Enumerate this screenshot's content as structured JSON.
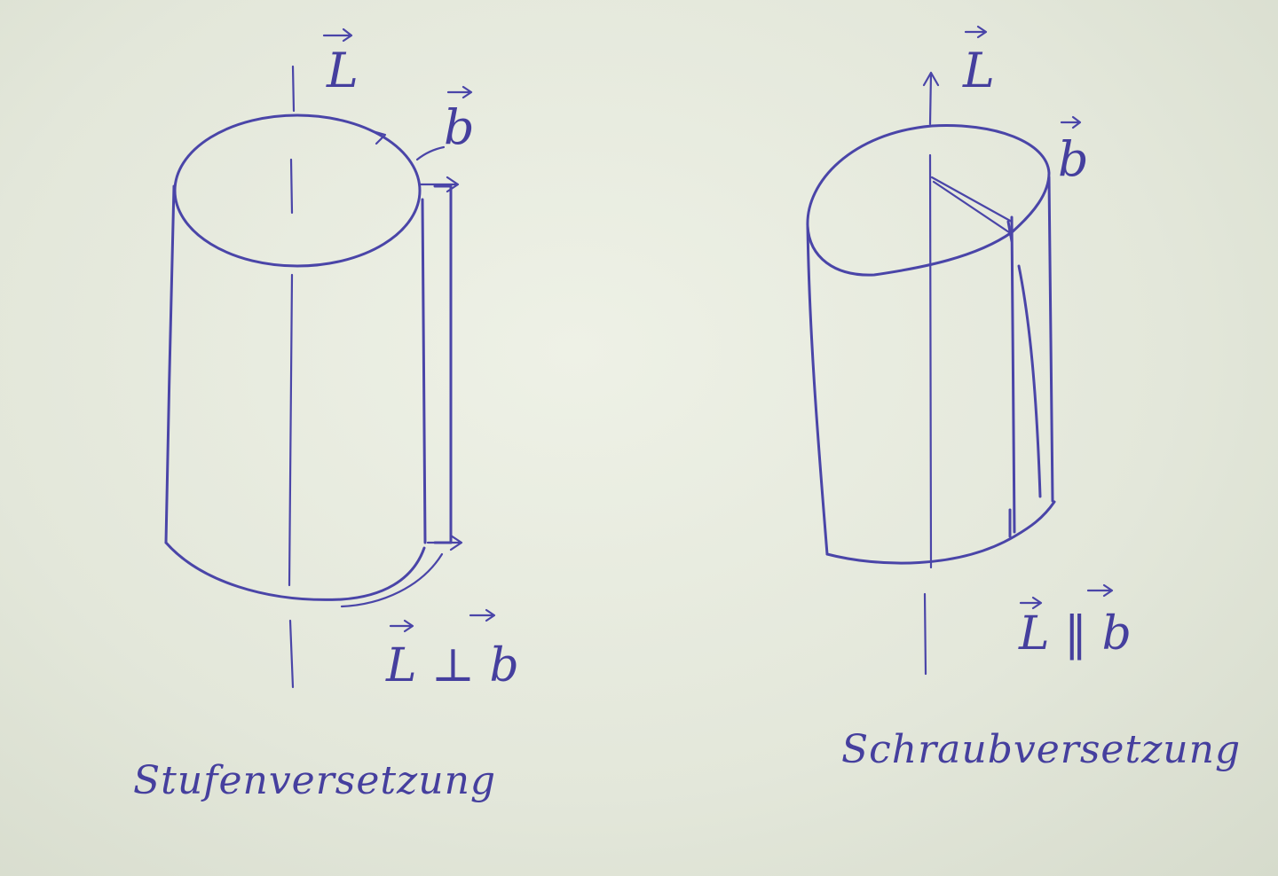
{
  "figure": {
    "left_diagram": {
      "axis_label": "L",
      "burgers_label": "b",
      "relation_text": "L ⊥ b",
      "caption": "Stufenversetzung"
    },
    "right_diagram": {
      "axis_label": "L",
      "burgers_label": "b",
      "relation_text": "L ‖ b",
      "caption": "Schraubversetzung"
    }
  },
  "colors": {
    "ink": "#4a45a8",
    "paper": "#e4e8dc"
  }
}
